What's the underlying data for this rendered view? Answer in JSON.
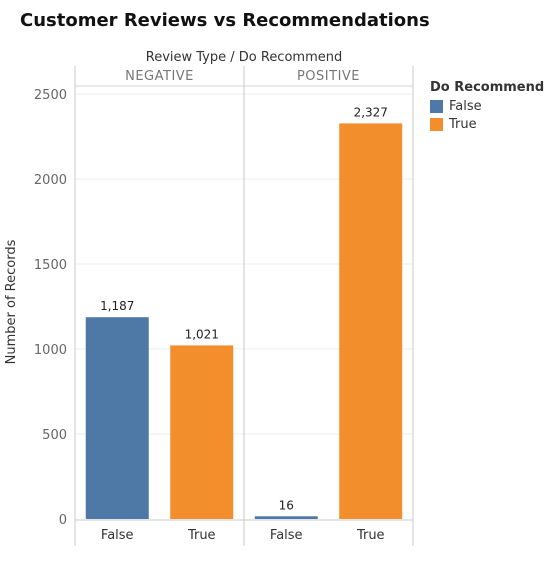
{
  "chart_data": {
    "type": "bar",
    "title": "Customer Reviews vs Recommendations",
    "column_header": "Review Type  /  Do Recommend",
    "ylabel": "Number of Records",
    "ylim": [
      0,
      2500
    ],
    "yticks": [
      0,
      500,
      1000,
      1500,
      2000,
      2500
    ],
    "ytick_labels": [
      "0",
      "500",
      "1000",
      "1500",
      "2000",
      "2500"
    ],
    "panels": [
      {
        "name": "NEGATIVE",
        "categories": [
          "False",
          "True"
        ],
        "values": [
          1187,
          1021
        ],
        "labels": [
          "1,187",
          "1,021"
        ]
      },
      {
        "name": "POSITIVE",
        "categories": [
          "False",
          "True"
        ],
        "values": [
          16,
          2327
        ],
        "labels": [
          "16",
          "2,327"
        ]
      }
    ],
    "legend": {
      "title": "Do Recommend",
      "position": "top-right",
      "entries": [
        {
          "label": "False",
          "color": "#4e79a7"
        },
        {
          "label": "True",
          "color": "#f28e2b"
        }
      ]
    },
    "grid": true
  }
}
